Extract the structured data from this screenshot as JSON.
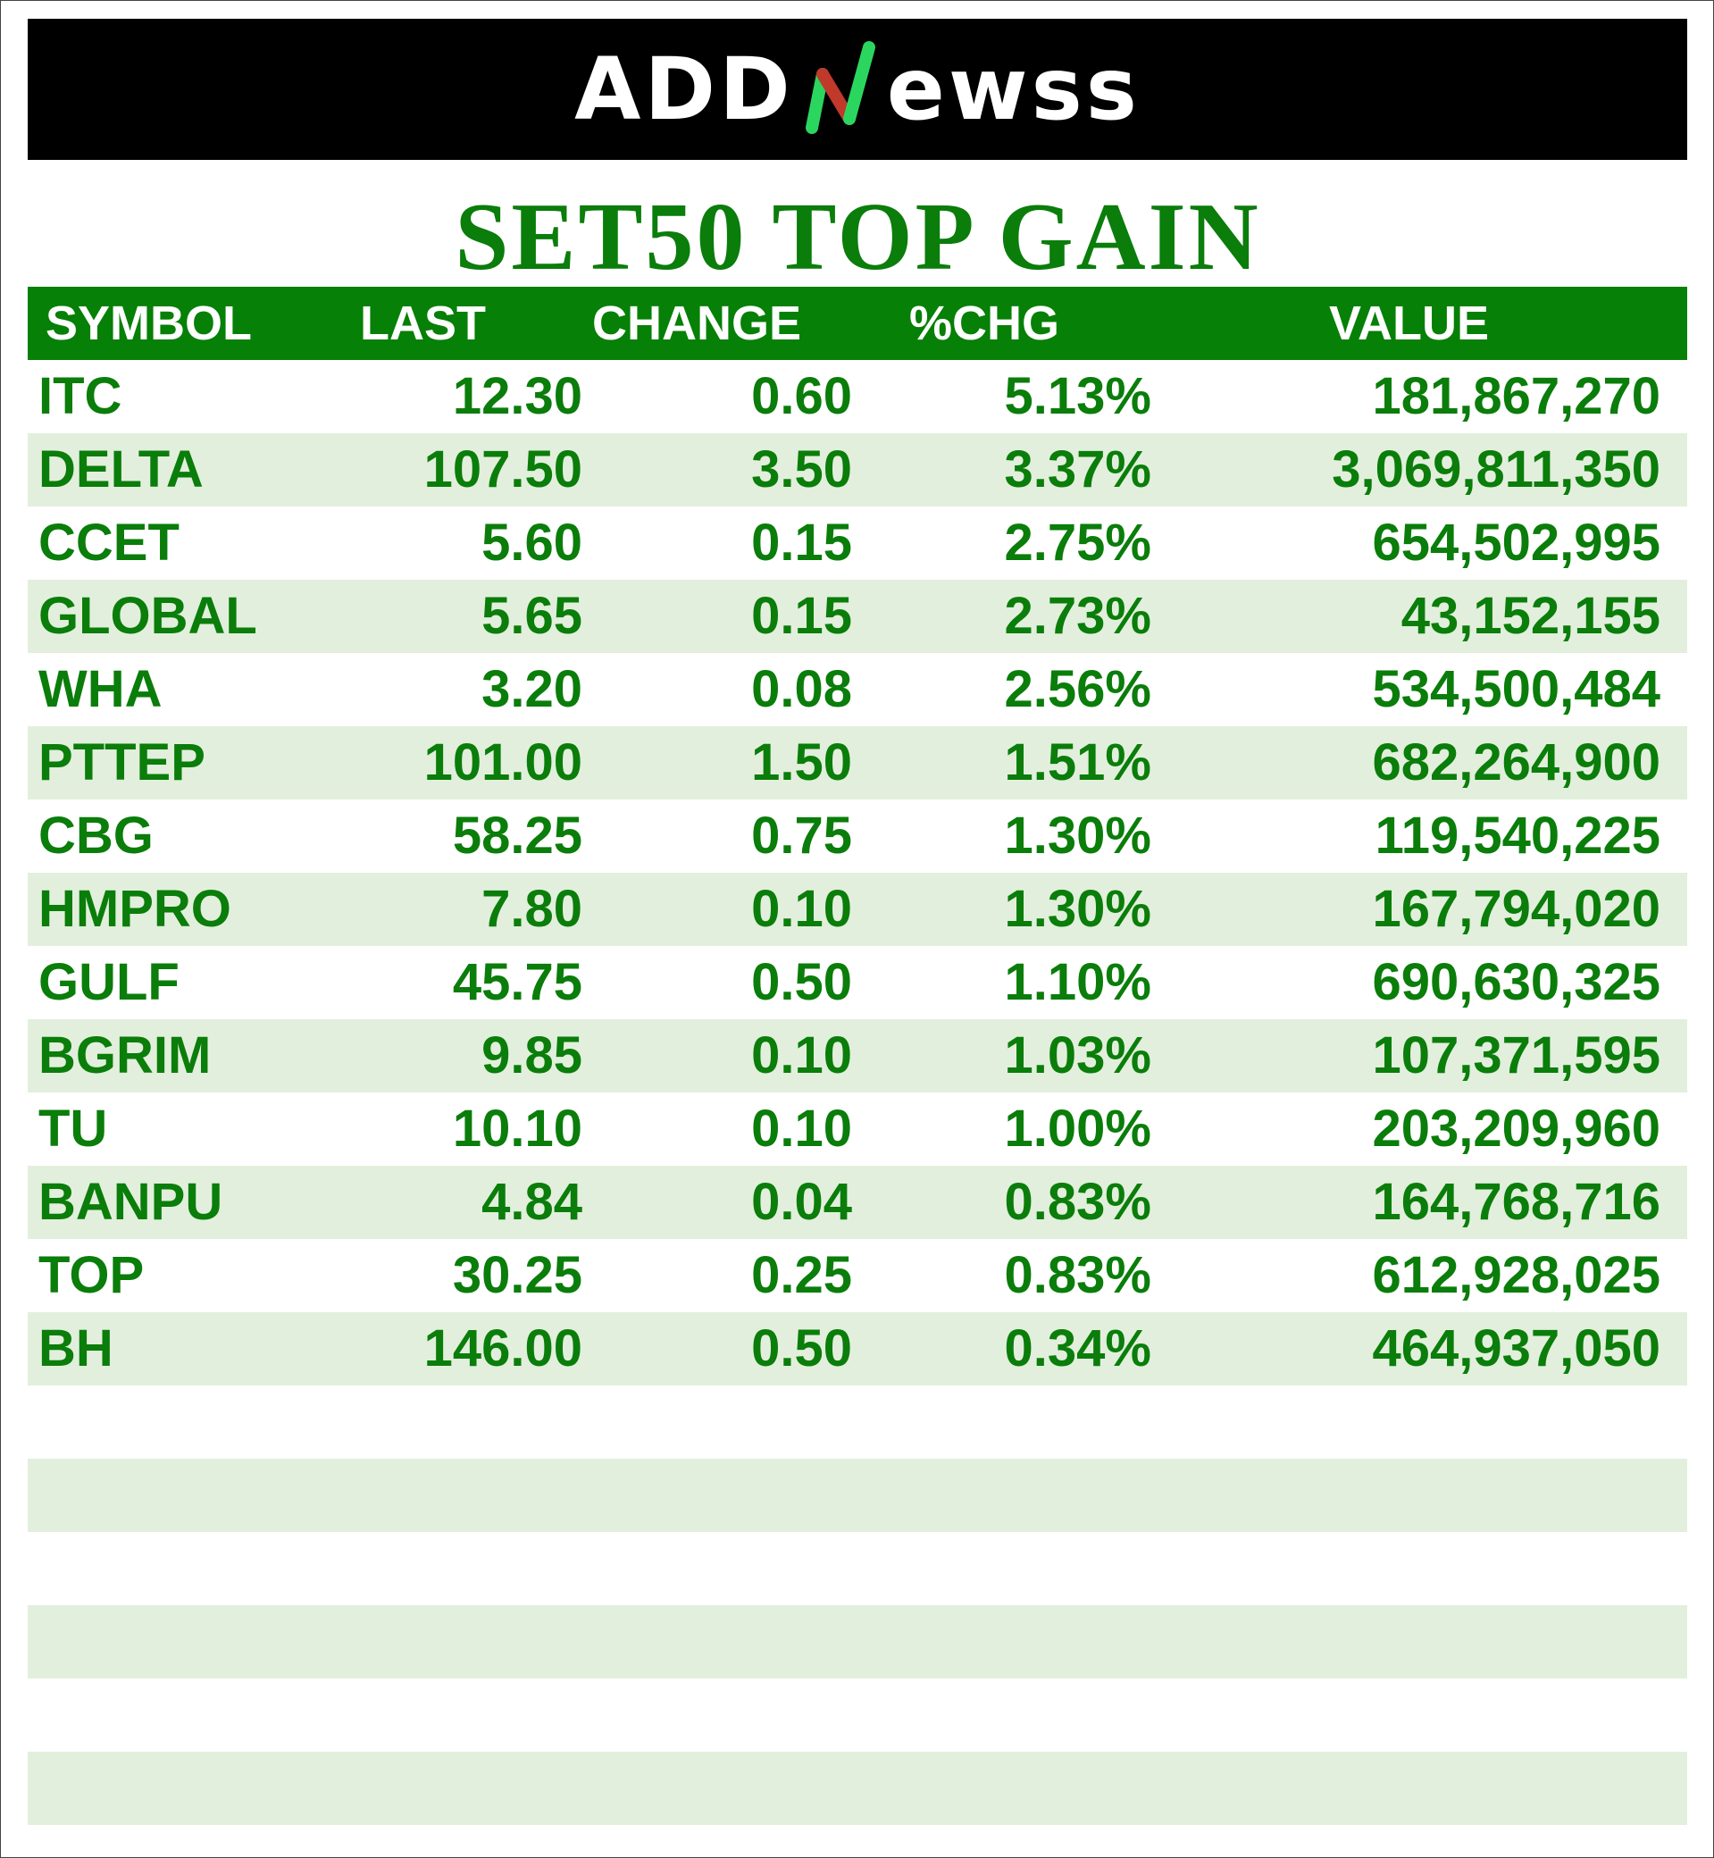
{
  "header": {
    "logo_left": "ADD",
    "logo_right": "ewss",
    "logo_mark_icon": "stylized-n-chart-icon",
    "accent_green": "#22c25a",
    "accent_red": "#c0392b"
  },
  "title": "SET50 TOP GAIN",
  "table": {
    "columns": [
      "SYMBOL",
      "LAST",
      "CHANGE",
      "%CHG",
      "VALUE"
    ],
    "rows": [
      {
        "symbol": "ITC",
        "last": "12.30",
        "change": "0.60",
        "pct": "5.13%",
        "value": "181,867,270"
      },
      {
        "symbol": "DELTA",
        "last": "107.50",
        "change": "3.50",
        "pct": "3.37%",
        "value": "3,069,811,350"
      },
      {
        "symbol": "CCET",
        "last": "5.60",
        "change": "0.15",
        "pct": "2.75%",
        "value": "654,502,995"
      },
      {
        "symbol": "GLOBAL",
        "last": "5.65",
        "change": "0.15",
        "pct": "2.73%",
        "value": "43,152,155"
      },
      {
        "symbol": "WHA",
        "last": "3.20",
        "change": "0.08",
        "pct": "2.56%",
        "value": "534,500,484"
      },
      {
        "symbol": "PTTEP",
        "last": "101.00",
        "change": "1.50",
        "pct": "1.51%",
        "value": "682,264,900"
      },
      {
        "symbol": "CBG",
        "last": "58.25",
        "change": "0.75",
        "pct": "1.30%",
        "value": "119,540,225"
      },
      {
        "symbol": "HMPRO",
        "last": "7.80",
        "change": "0.10",
        "pct": "1.30%",
        "value": "167,794,020"
      },
      {
        "symbol": "GULF",
        "last": "45.75",
        "change": "0.50",
        "pct": "1.10%",
        "value": "690,630,325"
      },
      {
        "symbol": "BGRIM",
        "last": "9.85",
        "change": "0.10",
        "pct": "1.03%",
        "value": "107,371,595"
      },
      {
        "symbol": "TU",
        "last": "10.10",
        "change": "0.10",
        "pct": "1.00%",
        "value": "203,209,960"
      },
      {
        "symbol": "BANPU",
        "last": "4.84",
        "change": "0.04",
        "pct": "0.83%",
        "value": "164,768,716"
      },
      {
        "symbol": "TOP",
        "last": "30.25",
        "change": "0.25",
        "pct": "0.83%",
        "value": "612,928,025"
      },
      {
        "symbol": "BH",
        "last": "146.00",
        "change": "0.50",
        "pct": "0.34%",
        "value": "464,937,050"
      },
      {
        "symbol": "",
        "last": "",
        "change": "",
        "pct": "",
        "value": ""
      },
      {
        "symbol": "",
        "last": "",
        "change": "",
        "pct": "",
        "value": ""
      },
      {
        "symbol": "",
        "last": "",
        "change": "",
        "pct": "",
        "value": ""
      },
      {
        "symbol": "",
        "last": "",
        "change": "",
        "pct": "",
        "value": ""
      },
      {
        "symbol": "",
        "last": "",
        "change": "",
        "pct": "",
        "value": ""
      },
      {
        "symbol": "",
        "last": "",
        "change": "",
        "pct": "",
        "value": ""
      }
    ]
  }
}
